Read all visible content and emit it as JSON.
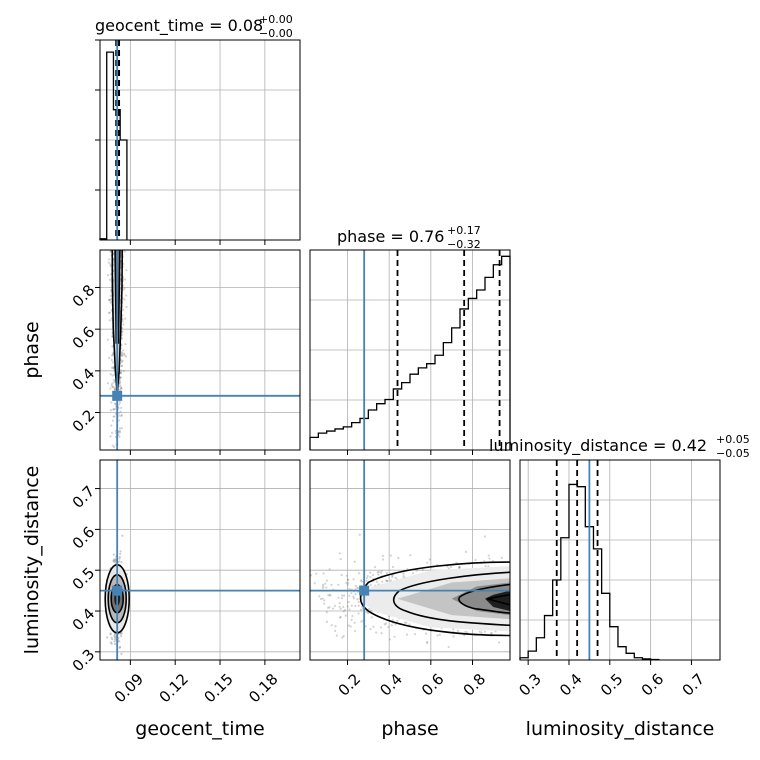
{
  "chart_data": {
    "type": "corner",
    "parameters": [
      "geocent_time",
      "phase",
      "luminosity_distance"
    ],
    "axis_labels": [
      "geocent_time",
      "phase",
      "luminosity_distance"
    ],
    "ranges": {
      "geocent_time": [
        0.0697,
        0.2035
      ],
      "phase": [
        0.02,
        0.98
      ],
      "luminosity_distance": [
        0.28,
        0.77
      ]
    },
    "ticks": {
      "geocent_time": [
        "0.09",
        "0.12",
        "0.15",
        "0.18"
      ],
      "phase_x": [
        "0.2",
        "0.4",
        "0.6",
        "0.8"
      ],
      "phase_y": [
        "0.2",
        "0.4",
        "0.6",
        "0.8"
      ],
      "luminosity_distance_x": [
        "0.3",
        "0.4",
        "0.5",
        "0.6",
        "0.7"
      ],
      "luminosity_distance_y": [
        "0.3",
        "0.4",
        "0.5",
        "0.6",
        "0.7"
      ]
    },
    "titles": [
      {
        "text": "geocent_time = 0.08",
        "plus": "+0.00",
        "minus": "−0.00"
      },
      {
        "text": "phase = 0.76",
        "plus": "+0.17",
        "minus": "−0.32"
      },
      {
        "text": "luminosity_distance = 0.42",
        "plus": "+0.05",
        "minus": "−0.05"
      }
    ],
    "truths": {
      "geocent_time": 0.0812,
      "phase": 0.28,
      "luminosity_distance": 0.45
    },
    "quantiles": {
      "geocent_time": [
        0.0805,
        0.0815,
        0.0825
      ],
      "phase": [
        0.44,
        0.76,
        0.93
      ],
      "luminosity_distance": [
        0.37,
        0.42,
        0.47
      ]
    },
    "histograms": {
      "geocent_time": {
        "bin_edges": [
          0.0697,
          0.0742,
          0.0787,
          0.0832,
          0.0877
        ],
        "counts": [
          0.02,
          3.1,
          2.15,
          1.65
        ]
      },
      "phase": {
        "bin_edges": [
          0.02,
          0.06,
          0.1,
          0.14,
          0.18,
          0.22,
          0.26,
          0.3,
          0.34,
          0.38,
          0.42,
          0.46,
          0.5,
          0.54,
          0.58,
          0.62,
          0.66,
          0.7,
          0.74,
          0.78,
          0.82,
          0.86,
          0.9,
          0.94,
          0.98
        ],
        "counts": [
          0.06,
          0.08,
          0.09,
          0.1,
          0.11,
          0.13,
          0.15,
          0.19,
          0.22,
          0.24,
          0.29,
          0.32,
          0.36,
          0.39,
          0.41,
          0.45,
          0.51,
          0.58,
          0.67,
          0.72,
          0.76,
          0.82,
          0.88,
          0.92
        ]
      },
      "luminosity_distance": {
        "bin_edges": [
          0.28,
          0.3,
          0.32,
          0.34,
          0.36,
          0.38,
          0.4,
          0.42,
          0.44,
          0.46,
          0.48,
          0.5,
          0.52,
          0.54,
          0.56,
          0.58,
          0.6,
          0.62
        ],
        "counts": [
          0.01,
          0.04,
          0.1,
          0.2,
          0.36,
          0.55,
          0.79,
          0.78,
          0.6,
          0.5,
          0.3,
          0.15,
          0.06,
          0.03,
          0.01,
          0.005,
          0.002
        ]
      }
    },
    "grid": true,
    "colors": {
      "truth": "#4682b4",
      "line": "#000000",
      "grid": "#b0b0b0",
      "points": "#808080"
    }
  }
}
